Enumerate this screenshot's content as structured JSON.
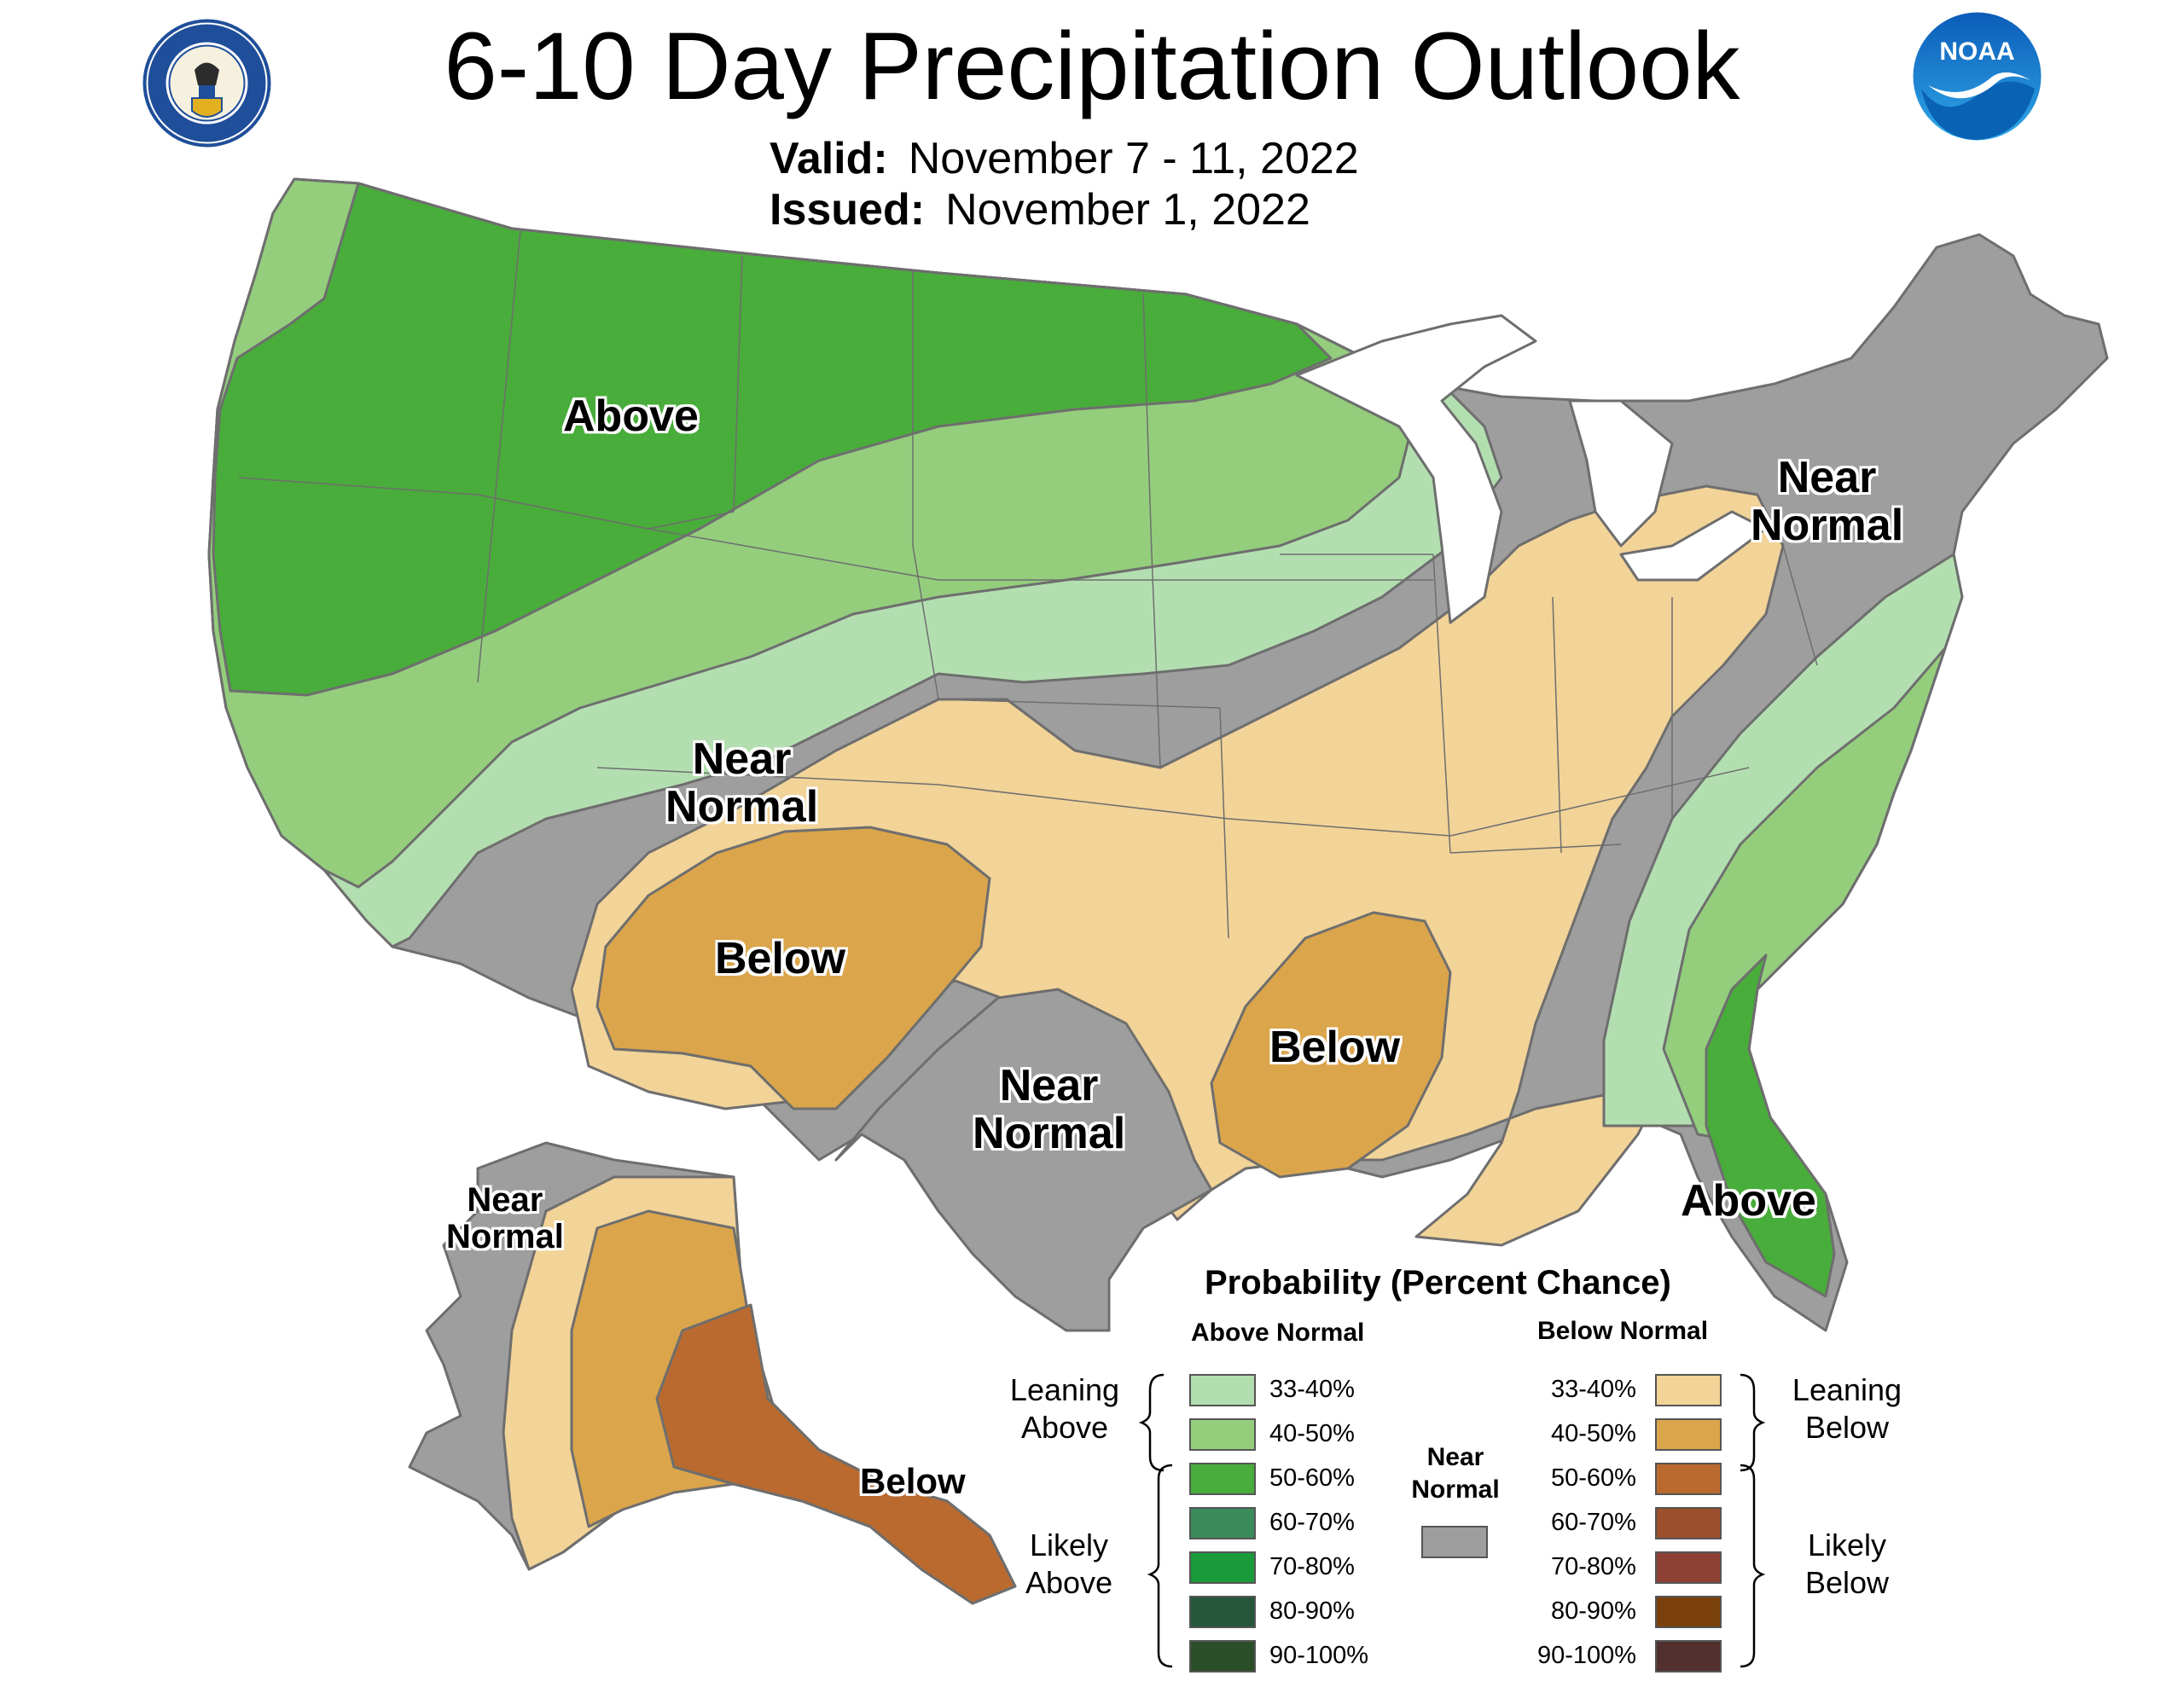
{
  "header": {
    "title": "6-10 Day Precipitation Outlook",
    "valid_label": "Valid:",
    "valid_value": "November 7 - 11, 2022",
    "issued_label": "Issued:",
    "issued_value": "November 1, 2022",
    "logo_left_text": "DEPARTMENT OF COMMERCE · UNITED STATES OF AMERICA",
    "logo_right_text": "NOAA"
  },
  "map": {
    "labels": {
      "above_northwest": "Above",
      "near_normal_central_line1": "Near",
      "near_normal_central_line2": "Normal",
      "below_southwest": "Below",
      "near_normal_texas_line1": "Near",
      "near_normal_texas_line2": "Normal",
      "below_south": "Below",
      "near_normal_northeast_line1": "Near",
      "near_normal_northeast_line2": "Normal",
      "above_southeast": "Above",
      "near_normal_alaska_line1": "Near",
      "near_normal_alaska_line2": "Normal",
      "below_alaska": "Below"
    },
    "colors": {
      "above_33_40": "#b3dfb0",
      "above_40_50": "#94ce7d",
      "above_50_60": "#48ad3a",
      "near_normal": "#9e9e9e",
      "below_33_40": "#f2d398",
      "below_40_50": "#dba54b",
      "below_50_60": "#ba6a2e",
      "boundary": "#6e6e6e",
      "lakes": "#ffffff"
    }
  },
  "legend": {
    "title": "Probability (Percent Chance)",
    "above_head": "Above Normal",
    "below_head": "Below Normal",
    "near_head_line1": "Near",
    "near_head_line2": "Normal",
    "leaning_above_line1": "Leaning",
    "leaning_above_line2": "Above",
    "likely_above_line1": "Likely",
    "likely_above_line2": "Above",
    "leaning_below_line1": "Leaning",
    "leaning_below_line2": "Below",
    "likely_below_line1": "Likely",
    "likely_below_line2": "Below",
    "above_bins": [
      {
        "label": "33-40%",
        "color": "#b3dfb0"
      },
      {
        "label": "40-50%",
        "color": "#94ce7d"
      },
      {
        "label": "50-60%",
        "color": "#48ad3a"
      },
      {
        "label": "60-70%",
        "color": "#3b8a5a"
      },
      {
        "label": "70-80%",
        "color": "#1b9a3a"
      },
      {
        "label": "80-90%",
        "color": "#25563a"
      },
      {
        "label": "90-100%",
        "color": "#2a4f28"
      }
    ],
    "below_bins": [
      {
        "label": "33-40%",
        "color": "#f2d398"
      },
      {
        "label": "40-50%",
        "color": "#dba54b"
      },
      {
        "label": "50-60%",
        "color": "#ba6a2e"
      },
      {
        "label": "60-70%",
        "color": "#9b4f2c"
      },
      {
        "label": "70-80%",
        "color": "#8f4035"
      },
      {
        "label": "80-90%",
        "color": "#7a400c"
      },
      {
        "label": "90-100%",
        "color": "#52302f"
      }
    ],
    "near_color": "#9e9e9e"
  }
}
